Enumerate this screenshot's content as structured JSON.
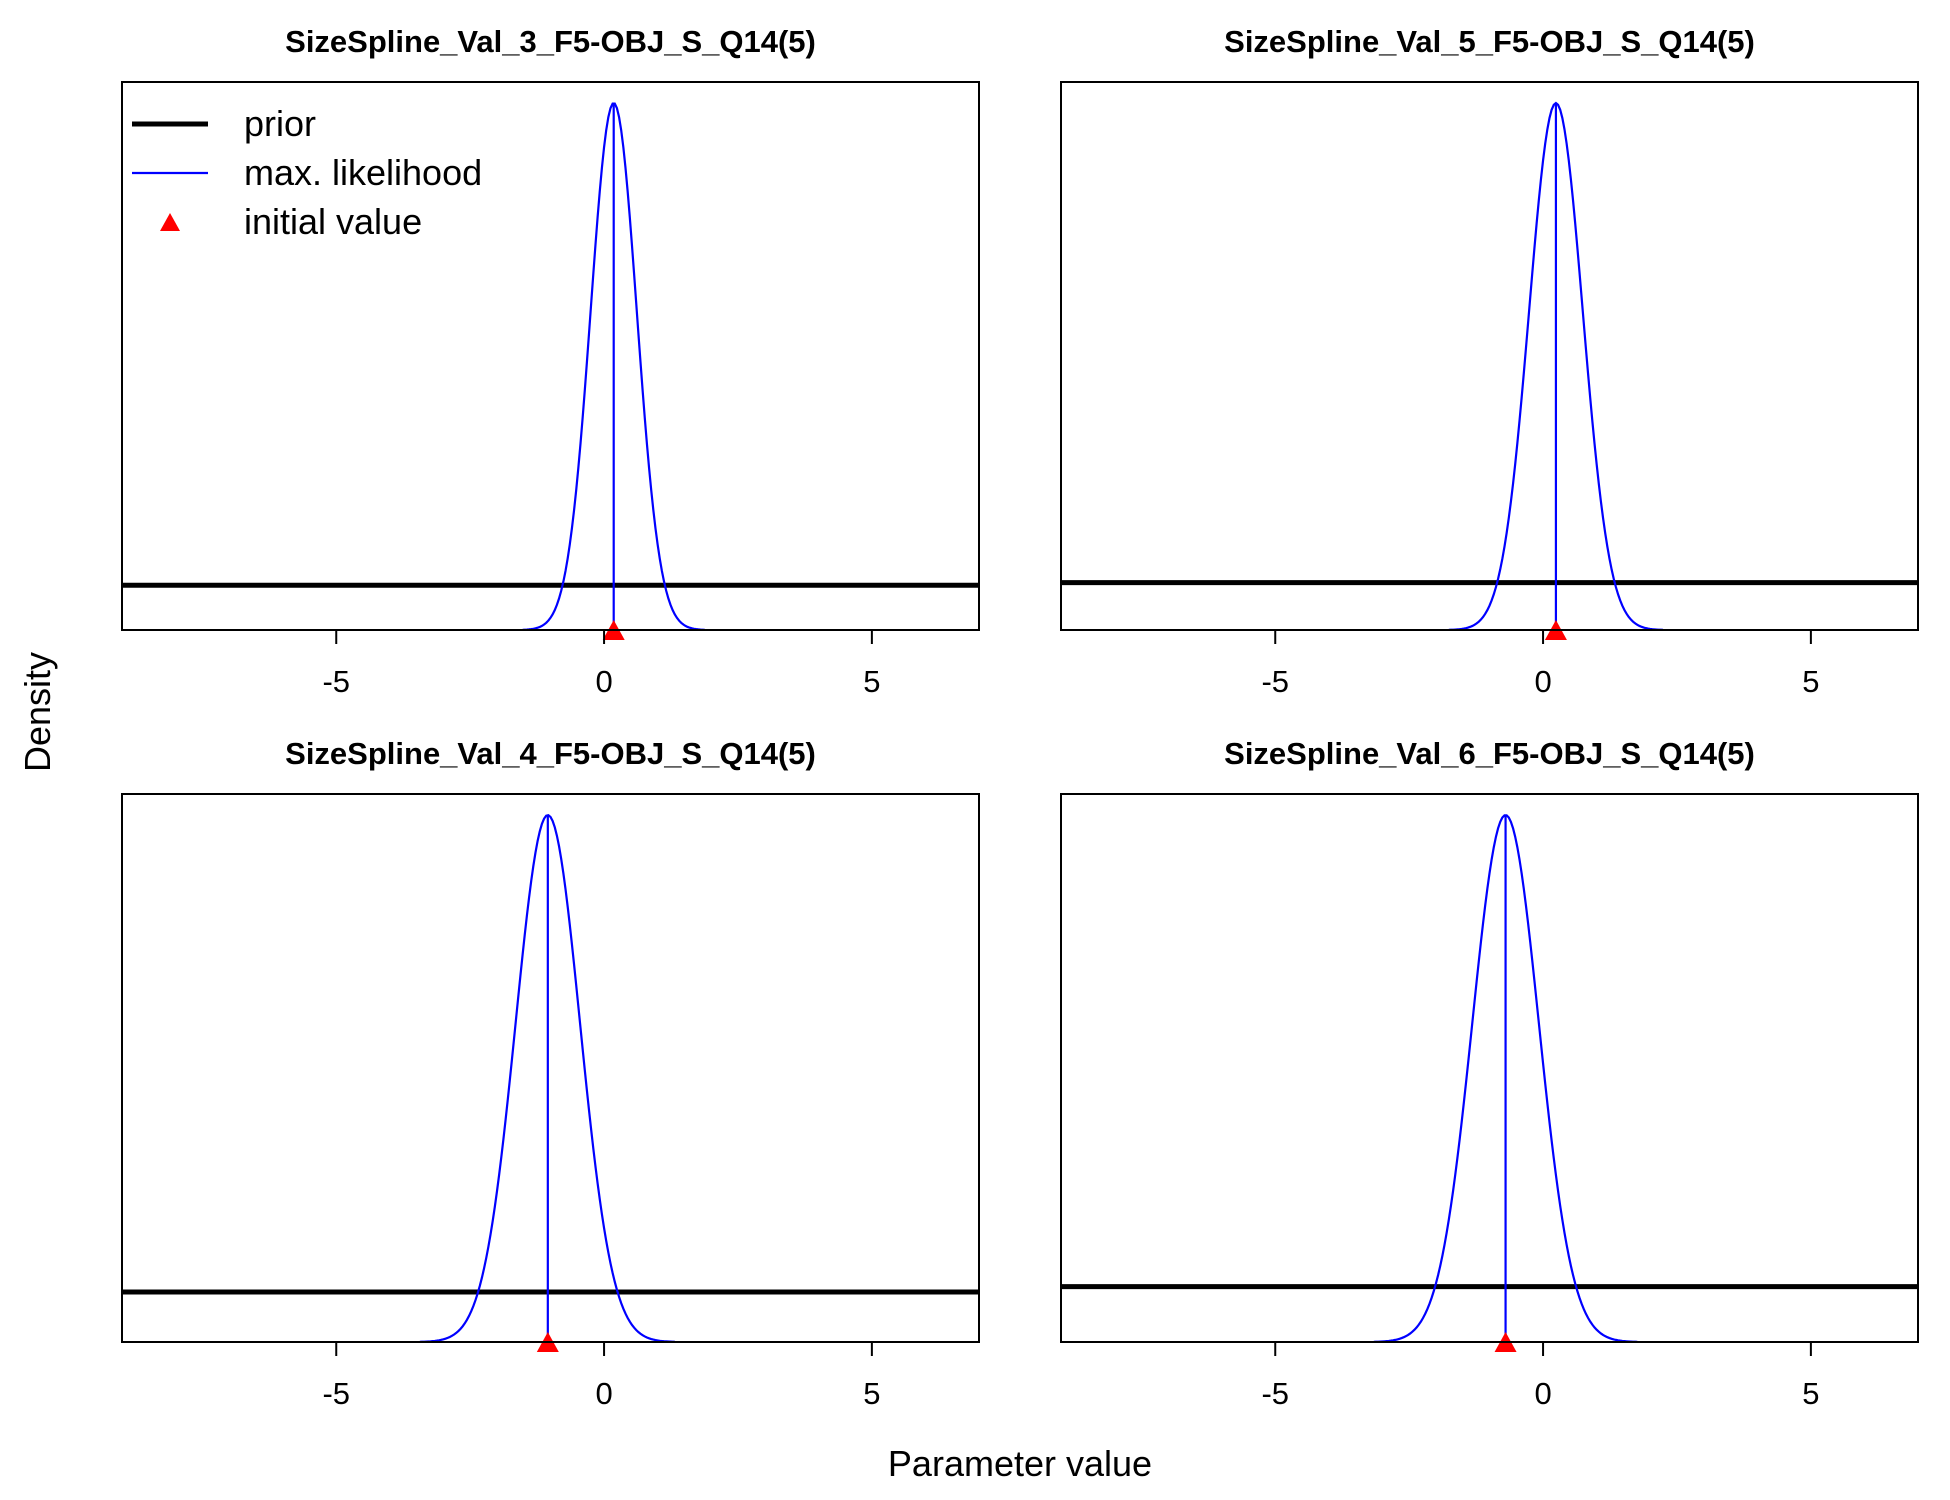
{
  "figure": {
    "xlabel": "Parameter value",
    "ylabel": "Density"
  },
  "legend": {
    "placement": "top-left of first panel",
    "items": [
      {
        "label": "prior",
        "kind": "line",
        "color": "#000000"
      },
      {
        "label": "max. likelihood",
        "kind": "line",
        "color": "#0000ff"
      },
      {
        "label": "initial value",
        "kind": "triangle",
        "color": "#ff0000"
      }
    ]
  },
  "colors": {
    "prior": "#000000",
    "likelihood": "#0000ff",
    "initial": "#ff0000",
    "axis": "#000000"
  },
  "chart_data": [
    {
      "type": "line",
      "title": "SizeSpline_Val_3_F5-OBJ_S_Q14(5)",
      "xlim": [
        -9,
        7
      ],
      "xticks": [
        -5,
        0,
        5
      ],
      "xtick_labels": [
        "-5",
        "0",
        "5"
      ],
      "y_ticks_shown": false,
      "ylim": [
        0,
        1.04
      ],
      "prior_level": 0.085,
      "likelihood": {
        "mean": 0.18,
        "sd": 0.43,
        "peak": 1.0
      },
      "initial_value": 0.18
    },
    {
      "type": "line",
      "title": "SizeSpline_Val_5_F5-OBJ_S_Q14(5)",
      "xlim": [
        -9,
        7
      ],
      "xticks": [
        -5,
        0,
        5
      ],
      "xtick_labels": [
        "-5",
        "0",
        "5"
      ],
      "y_ticks_shown": false,
      "ylim": [
        0,
        1.04
      ],
      "prior_level": 0.09,
      "likelihood": {
        "mean": 0.24,
        "sd": 0.5,
        "peak": 1.0
      },
      "initial_value": 0.24
    },
    {
      "type": "line",
      "title": "SizeSpline_Val_4_F5-OBJ_S_Q14(5)",
      "xlim": [
        -9,
        7
      ],
      "xticks": [
        -5,
        0,
        5
      ],
      "xtick_labels": [
        "-5",
        "0",
        "5"
      ],
      "y_ticks_shown": false,
      "ylim": [
        0,
        1.04
      ],
      "prior_level": 0.095,
      "likelihood": {
        "mean": -1.05,
        "sd": 0.6,
        "peak": 1.0
      },
      "initial_value": -1.05
    },
    {
      "type": "line",
      "title": "SizeSpline_Val_6_F5-OBJ_S_Q14(5)",
      "xlim": [
        -9,
        7
      ],
      "xticks": [
        -5,
        0,
        5
      ],
      "xtick_labels": [
        "-5",
        "0",
        "5"
      ],
      "y_ticks_shown": false,
      "ylim": [
        0,
        1.04
      ],
      "prior_level": 0.105,
      "likelihood": {
        "mean": -0.7,
        "sd": 0.62,
        "peak": 1.0
      },
      "initial_value": -0.7
    }
  ]
}
